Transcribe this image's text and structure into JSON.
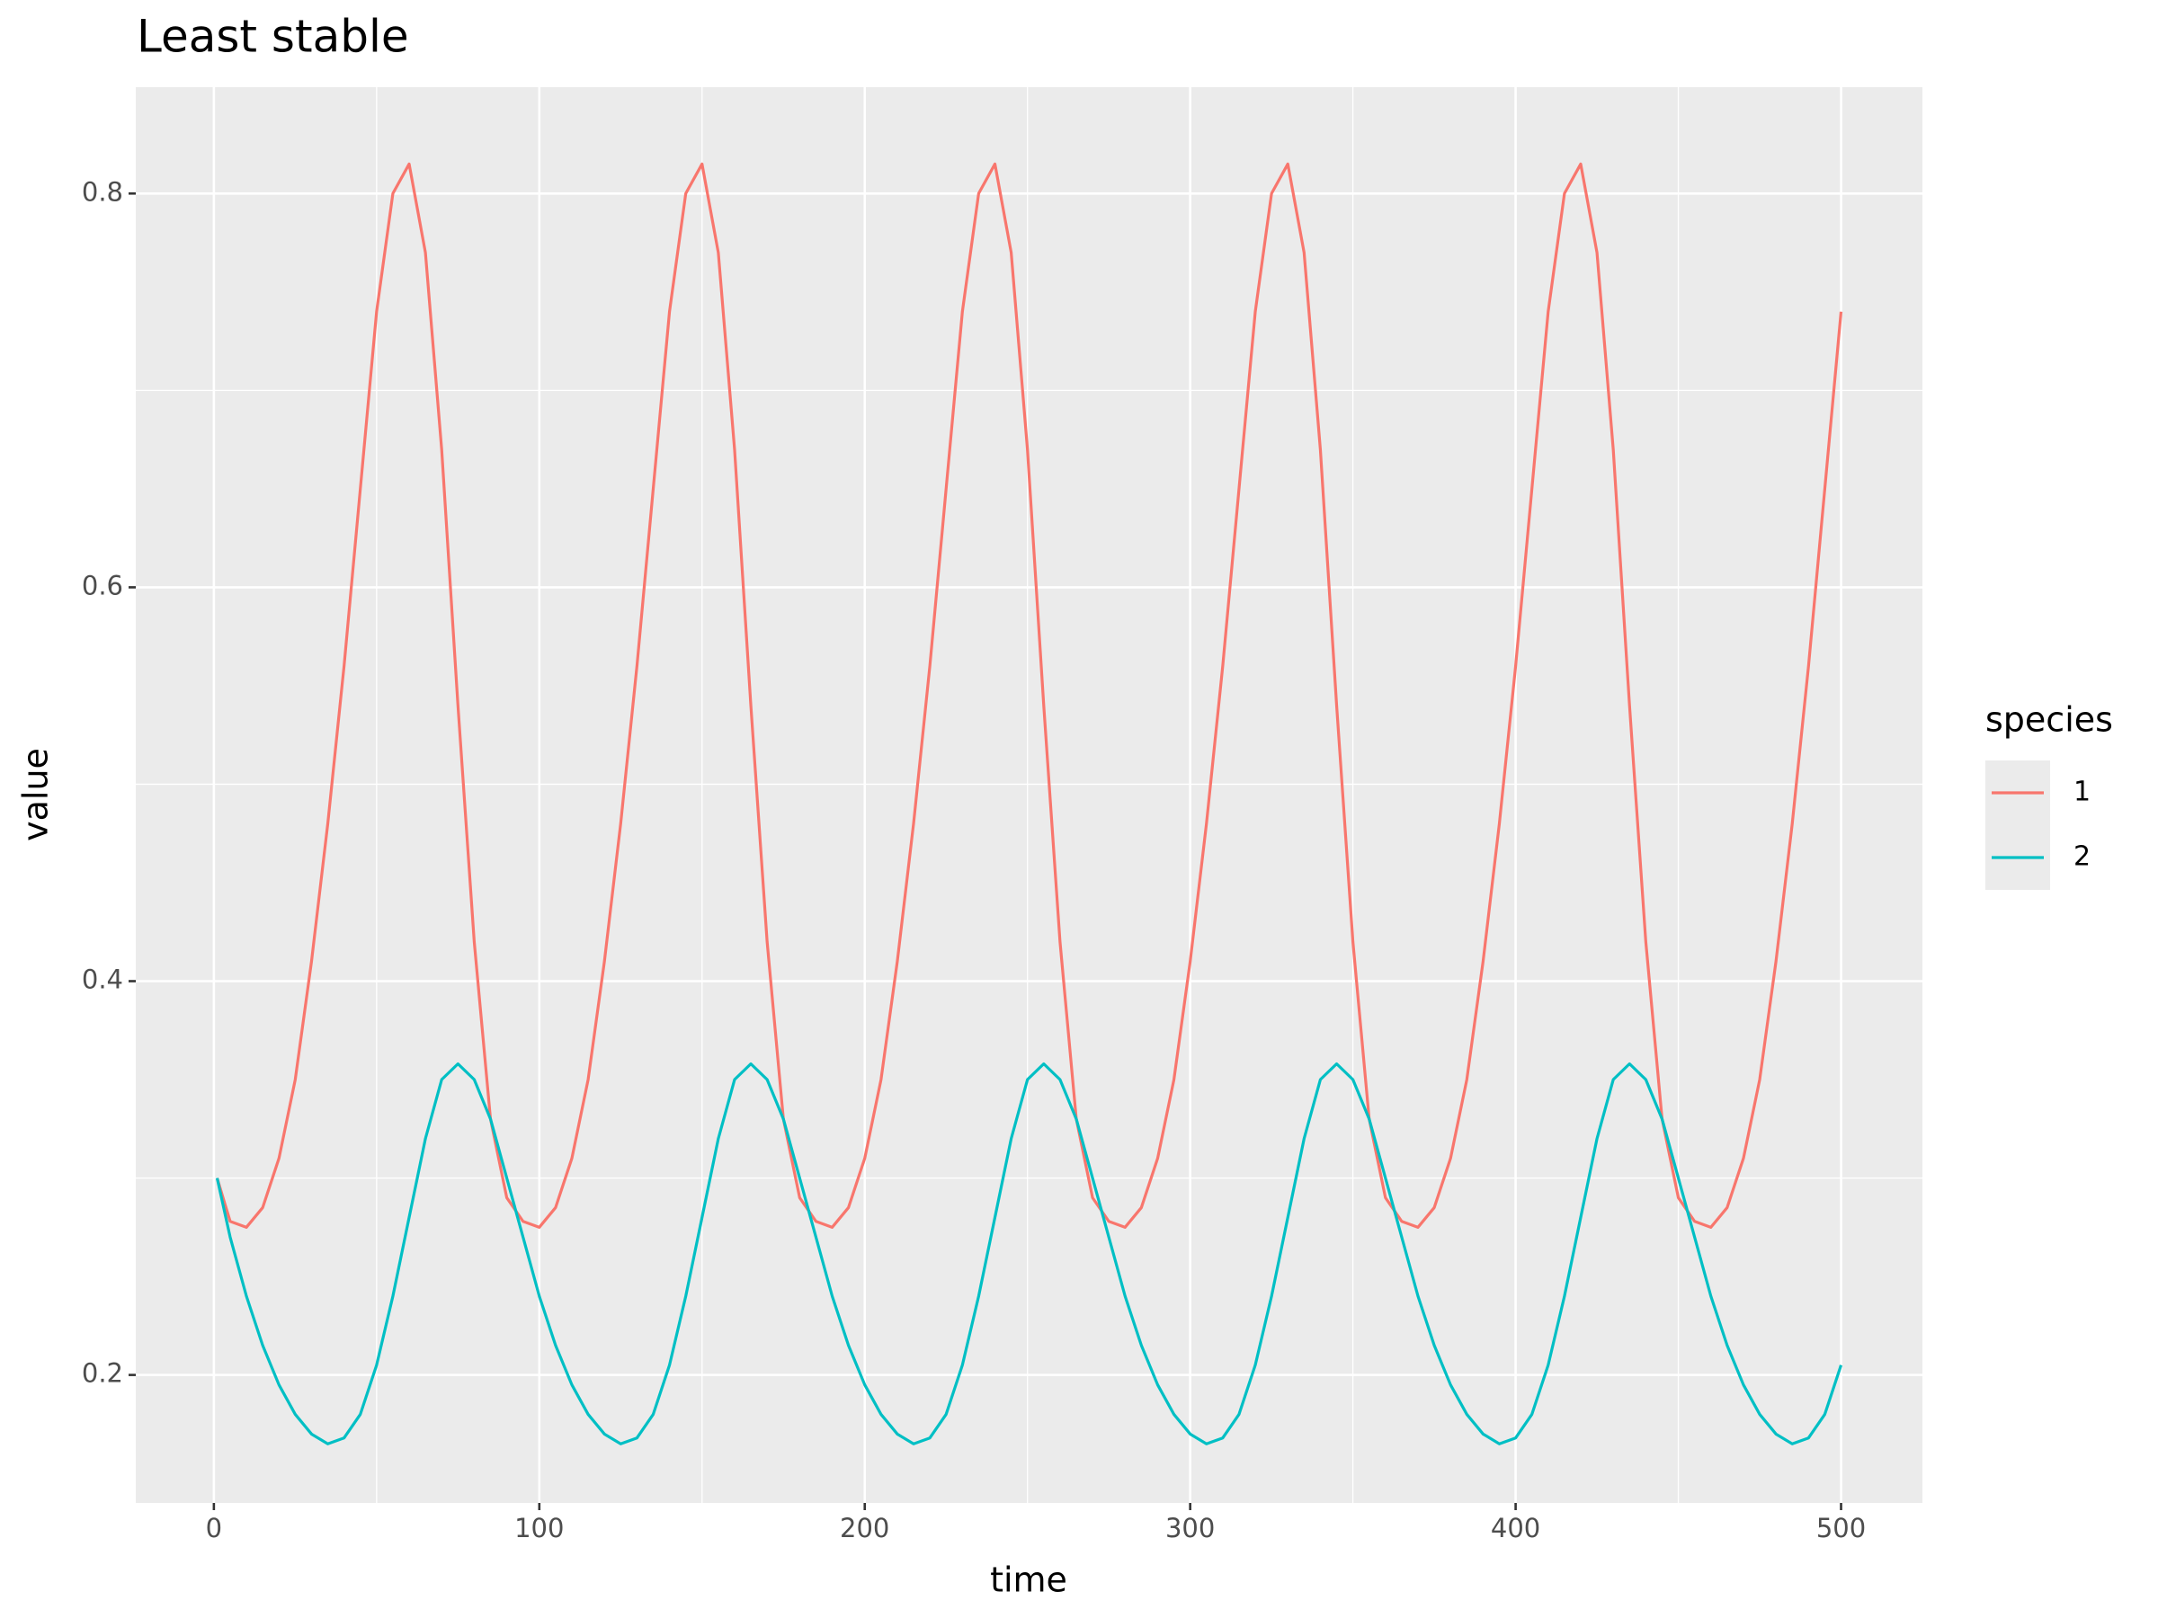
{
  "chart_data": {
    "type": "line",
    "title": "Least stable",
    "x_label": "time",
    "y_label": "value",
    "legend_title": "species",
    "legend_position": "right",
    "grid": true,
    "xlim": [
      -24,
      525
    ],
    "ylim": [
      0.135,
      0.854
    ],
    "xticks": [
      0,
      100,
      200,
      300,
      400,
      500
    ],
    "minor_xticks": [
      50,
      150,
      250,
      350,
      450
    ],
    "yticks": [
      0.2,
      0.4,
      0.6,
      0.8
    ],
    "minor_yticks": [
      0.3,
      0.5,
      0.7
    ],
    "x": [
      1,
      5,
      10,
      15,
      20,
      25,
      30,
      35,
      40,
      45,
      50,
      55,
      60,
      65,
      70,
      75,
      80,
      85,
      90,
      95,
      100,
      105,
      110,
      115,
      120,
      125,
      130,
      135,
      140,
      145,
      150,
      155,
      160,
      165,
      170,
      175,
      180,
      185,
      190,
      195,
      200,
      205,
      210,
      215,
      220,
      225,
      230,
      235,
      240,
      245,
      250,
      255,
      260,
      265,
      270,
      275,
      280,
      285,
      290,
      295,
      300,
      305,
      310,
      315,
      320,
      325,
      330,
      335,
      340,
      345,
      350,
      355,
      360,
      365,
      370,
      375,
      380,
      385,
      390,
      395,
      400,
      405,
      410,
      415,
      420,
      425,
      430,
      435,
      440,
      445,
      450,
      455,
      460,
      465,
      470,
      475,
      480,
      485,
      490,
      495,
      500
    ],
    "series": [
      {
        "name": "1",
        "color": "#F8766D",
        "values": [
          0.3,
          0.278,
          0.275,
          0.285,
          0.31,
          0.35,
          0.41,
          0.48,
          0.56,
          0.65,
          0.74,
          0.8,
          0.815,
          0.77,
          0.67,
          0.54,
          0.42,
          0.33,
          0.29,
          0.278,
          0.275,
          0.285,
          0.31,
          0.35,
          0.41,
          0.48,
          0.56,
          0.65,
          0.74,
          0.8,
          0.815,
          0.77,
          0.67,
          0.54,
          0.42,
          0.33,
          0.29,
          0.278,
          0.275,
          0.285,
          0.31,
          0.35,
          0.41,
          0.48,
          0.56,
          0.65,
          0.74,
          0.8,
          0.815,
          0.77,
          0.67,
          0.54,
          0.42,
          0.33,
          0.29,
          0.278,
          0.275,
          0.285,
          0.31,
          0.35,
          0.41,
          0.48,
          0.56,
          0.65,
          0.74,
          0.8,
          0.815,
          0.77,
          0.67,
          0.54,
          0.42,
          0.33,
          0.29,
          0.278,
          0.275,
          0.285,
          0.31,
          0.35,
          0.41,
          0.48,
          0.56,
          0.65,
          0.74,
          0.8,
          0.815,
          0.77,
          0.67,
          0.54,
          0.42,
          0.33,
          0.29,
          0.278,
          0.275,
          0.285,
          0.31,
          0.35,
          0.41,
          0.48,
          0.56,
          0.65,
          0.74
        ]
      },
      {
        "name": "2",
        "color": "#00BFC4",
        "values": [
          0.3,
          0.27,
          0.24,
          0.215,
          0.195,
          0.18,
          0.17,
          0.165,
          0.168,
          0.18,
          0.205,
          0.24,
          0.28,
          0.32,
          0.35,
          0.358,
          0.35,
          0.33,
          0.3,
          0.27,
          0.24,
          0.215,
          0.195,
          0.18,
          0.17,
          0.165,
          0.168,
          0.18,
          0.205,
          0.24,
          0.28,
          0.32,
          0.35,
          0.358,
          0.35,
          0.33,
          0.3,
          0.27,
          0.24,
          0.215,
          0.195,
          0.18,
          0.17,
          0.165,
          0.168,
          0.18,
          0.205,
          0.24,
          0.28,
          0.32,
          0.35,
          0.358,
          0.35,
          0.33,
          0.3,
          0.27,
          0.24,
          0.215,
          0.195,
          0.18,
          0.17,
          0.165,
          0.168,
          0.18,
          0.205,
          0.24,
          0.28,
          0.32,
          0.35,
          0.358,
          0.35,
          0.33,
          0.3,
          0.27,
          0.24,
          0.215,
          0.195,
          0.18,
          0.17,
          0.165,
          0.168,
          0.18,
          0.205,
          0.24,
          0.28,
          0.32,
          0.35,
          0.358,
          0.35,
          0.33,
          0.3,
          0.27,
          0.24,
          0.215,
          0.195,
          0.18,
          0.17,
          0.165,
          0.168,
          0.18,
          0.205
        ]
      }
    ]
  }
}
